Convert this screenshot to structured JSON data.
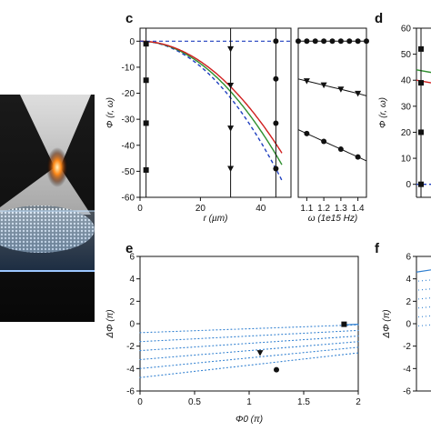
{
  "figure": {
    "panels": {
      "c": {
        "label": "c"
      },
      "d": {
        "label": "d"
      },
      "e": {
        "label": "e"
      },
      "f": {
        "label": "f"
      }
    }
  },
  "chart_data": [
    {
      "panel": "c",
      "type": "line",
      "xlabel": "r (µm)",
      "ylabel": "Φ (r, ω)",
      "xlim": [
        0,
        50
      ],
      "ylim": [
        -60,
        5
      ],
      "xticks": [
        "0",
        "20",
        "40"
      ],
      "yticks": [
        "0",
        "-10",
        "-20",
        "-30",
        "-40",
        "-50",
        "-60"
      ],
      "grid": false,
      "series": [
        {
          "color": "#1f3fbf",
          "style": "dashed",
          "x": [
            0,
            10,
            20,
            30,
            40,
            47
          ],
          "y": [
            0,
            -2.3,
            -9.5,
            -21.5,
            -38.5,
            -53.5
          ]
        },
        {
          "color": "#2f8f2f",
          "x": [
            0,
            10,
            20,
            30,
            40,
            47
          ],
          "y": [
            0,
            -2.0,
            -8.6,
            -19.5,
            -34.5,
            -47.5
          ]
        },
        {
          "color": "#d01f1f",
          "x": [
            0,
            10,
            20,
            30,
            40,
            47
          ],
          "y": [
            0,
            -1.8,
            -7.8,
            -17.5,
            -31.0,
            -43.0
          ]
        }
      ],
      "vertical_markers": [
        {
          "x": 2,
          "marker": "square",
          "points": [
            -1,
            -15,
            -31.5,
            -49.5
          ]
        },
        {
          "x": 30,
          "marker": "triangle-down",
          "points": [
            -3,
            -17,
            -33.5,
            -49
          ]
        },
        {
          "x": 45,
          "marker": "circle",
          "points": [
            0,
            -14.5,
            -31.5,
            -49
          ]
        }
      ]
    },
    {
      "panel": "c-inset",
      "type": "line",
      "xlabel": "ω (1e15 Hz)",
      "xlim": [
        1.05,
        1.45
      ],
      "ylim": [
        -60,
        5
      ],
      "xticks": [
        "1.1",
        "1.2",
        "1.3",
        "1.4"
      ],
      "series": [
        {
          "marker": "circle",
          "x": [
            1.05,
            1.1,
            1.15,
            1.2,
            1.25,
            1.3,
            1.35,
            1.4,
            1.45
          ],
          "y": [
            0,
            0,
            0,
            0,
            0,
            0,
            0,
            0,
            0
          ]
        },
        {
          "marker": "triangle-down",
          "x": [
            1.05,
            1.1,
            1.15,
            1.2,
            1.25,
            1.3,
            1.35,
            1.4,
            1.45
          ],
          "y": [
            -14.5,
            -15.3,
            -16.1,
            -16.9,
            -17.7,
            -18.5,
            -19.3,
            -20.1,
            -21
          ]
        },
        {
          "marker": "circle",
          "x": [
            1.05,
            1.1,
            1.15,
            1.2,
            1.25,
            1.3,
            1.35,
            1.4,
            1.45
          ],
          "y": [
            -34,
            -35.5,
            -37,
            -38.5,
            -40,
            -41.5,
            -43,
            -44.5,
            -46
          ]
        }
      ]
    },
    {
      "panel": "d",
      "type": "line",
      "ylabel": "Φ (r, ω)",
      "ylim": [
        -5,
        60
      ],
      "yticks": [
        "60",
        "50",
        "40",
        "30",
        "20",
        "10",
        "0"
      ],
      "series": [
        {
          "color": "#2f8f2f",
          "values": [
            44,
            43.5,
            43
          ]
        },
        {
          "color": "#d01f1f",
          "values": [
            40,
            39.5,
            39
          ]
        },
        {
          "color": "#1f3fbf",
          "style": "dashed",
          "values": [
            0,
            0,
            0
          ]
        }
      ],
      "markers": [
        {
          "marker": "square",
          "points": [
            52,
            39,
            20,
            0
          ]
        }
      ]
    },
    {
      "panel": "e",
      "type": "scatter",
      "xlabel": "Φ0 (π)",
      "ylabel": "ΔΦ (π)",
      "xlim": [
        0,
        2
      ],
      "ylim": [
        -6,
        6
      ],
      "xticks": [
        "0",
        "0.5",
        "1",
        "1.5",
        "2"
      ],
      "yticks": [
        "6",
        "4",
        "2",
        "0",
        "-2",
        "-4",
        "-6"
      ],
      "dotted_lines": [
        {
          "y0": -0.8,
          "y1": -0.1
        },
        {
          "y0": -1.6,
          "y1": -0.6
        },
        {
          "y0": -2.4,
          "y1": -1.1
        },
        {
          "y0": -3.2,
          "y1": -1.6
        },
        {
          "y0": -4.0,
          "y1": -2.1
        },
        {
          "y0": -4.8,
          "y1": -2.6
        }
      ],
      "highlights": [
        {
          "marker": "square",
          "x": 1.87,
          "y": -0.05
        },
        {
          "marker": "triangle-down",
          "x": 1.1,
          "y": -2.6
        },
        {
          "marker": "circle",
          "x": 1.25,
          "y": -4.1
        }
      ]
    },
    {
      "panel": "f",
      "type": "scatter",
      "ylabel": "ΔΦ (π)",
      "ylim": [
        -6,
        6
      ],
      "yticks": [
        "6",
        "4",
        "2",
        "0",
        "-2",
        "-4",
        "-6"
      ]
    }
  ]
}
